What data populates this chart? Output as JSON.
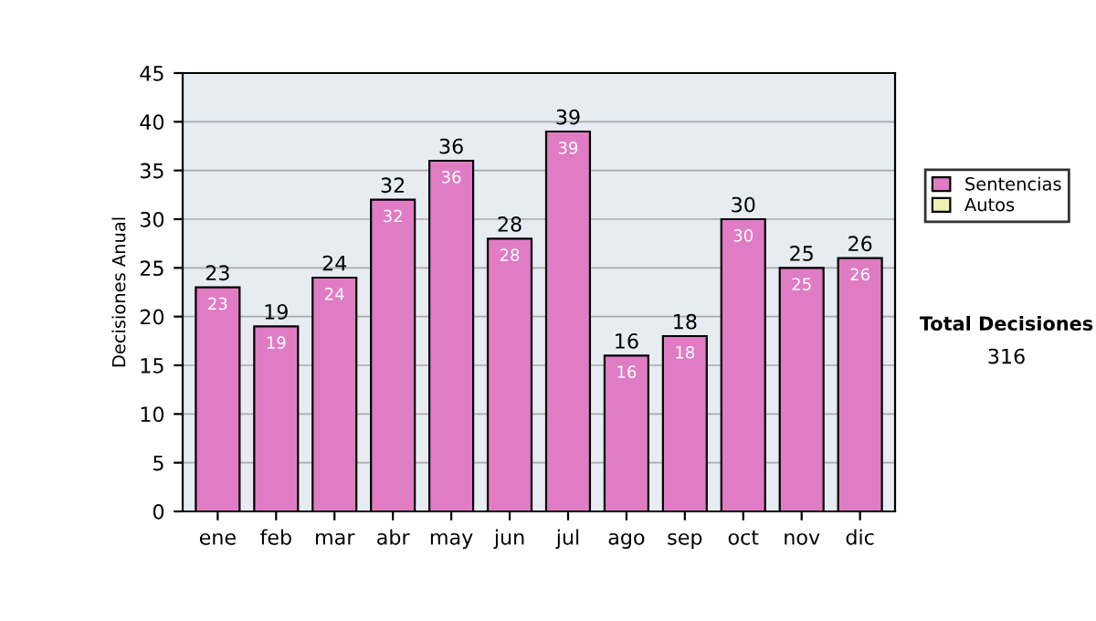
{
  "chart_data": {
    "type": "bar",
    "stacked": true,
    "ylabel": "Decisiones Anual",
    "categories": [
      "ene",
      "feb",
      "mar",
      "abr",
      "may",
      "jun",
      "jul",
      "ago",
      "sep",
      "oct",
      "nov",
      "dic"
    ],
    "series": [
      {
        "name": "Sentencias",
        "color": "#e07cc4",
        "values": [
          23,
          19,
          24,
          32,
          36,
          28,
          39,
          16,
          18,
          30,
          25,
          26
        ],
        "value_labels": [
          "23",
          "19",
          "24",
          "32",
          "36",
          "28",
          "39",
          "16",
          "18",
          "30",
          "25",
          "26"
        ]
      },
      {
        "name": "Autos",
        "color": "#f0f0b0",
        "values": [
          null,
          null,
          null,
          null,
          null,
          null,
          null,
          null,
          null,
          null,
          null,
          null
        ]
      }
    ],
    "totals": [
      "23",
      "19",
      "24",
      "32",
      "36",
      "28",
      "39",
      "16",
      "18",
      "30",
      "25",
      "26"
    ],
    "ylim": [
      0,
      45
    ],
    "yticks": [
      0,
      5,
      10,
      15,
      20,
      25,
      30,
      35,
      40,
      45
    ],
    "grid": "y",
    "legend": "right",
    "annotations": [
      "Total Decisiones",
      "316"
    ]
  }
}
